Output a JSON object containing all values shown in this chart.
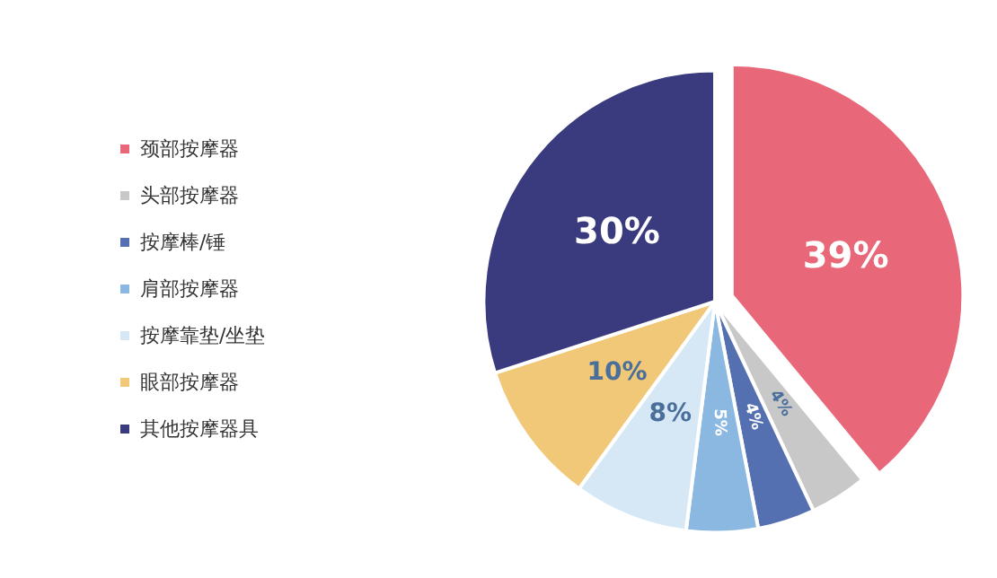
{
  "chart_data": {
    "type": "pie",
    "categories": [
      "颈部按摩器",
      "头部按摩器",
      "按摩棒/锤",
      "肩部按摩器",
      "按摩靠垫/坐垫",
      "眼部按摩器",
      "其他按摩器具"
    ],
    "values": [
      39,
      4,
      4,
      5,
      8,
      10,
      30
    ],
    "colors": [
      "#e8687a",
      "#c8c8c8",
      "#5470b0",
      "#8ab8e0",
      "#d6e8f5",
      "#f0c878",
      "#3a3a7e"
    ],
    "value_labels": [
      "39%",
      "4%",
      "4%",
      "5%",
      "8%",
      "10%",
      "30%"
    ],
    "legend": "left"
  }
}
